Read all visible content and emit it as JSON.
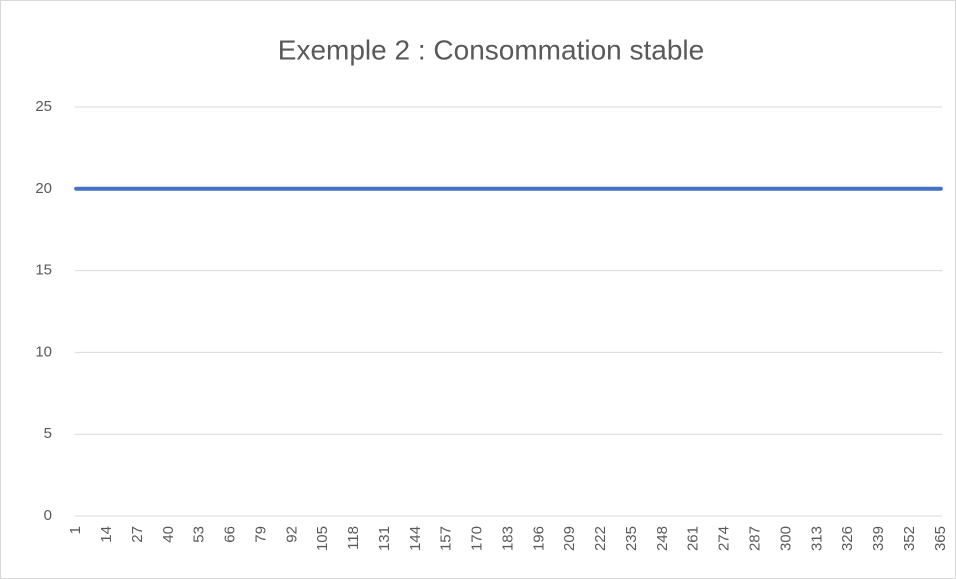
{
  "chart_data": {
    "type": "line",
    "title": "Exemple 2 : Consommation stable",
    "x": [
      1,
      2,
      3,
      4,
      5,
      6,
      7,
      8,
      9,
      10,
      11,
      12,
      13,
      14,
      15,
      16,
      17,
      18,
      19,
      20,
      21,
      22,
      23,
      24,
      25,
      26,
      27,
      28,
      29,
      30,
      31,
      32,
      33,
      34,
      35,
      36,
      37,
      38,
      39,
      40,
      41,
      42,
      43,
      44,
      45,
      46,
      47,
      48,
      49,
      50,
      51,
      52,
      53,
      54,
      55,
      56,
      57,
      58,
      59,
      60,
      61,
      62,
      63,
      64,
      65,
      66,
      67,
      68,
      69,
      70,
      71,
      72,
      73,
      74,
      75,
      76,
      77,
      78,
      79,
      80,
      81,
      82,
      83,
      84,
      85,
      86,
      87,
      88,
      89,
      90,
      91,
      92,
      93,
      94,
      95,
      96,
      97,
      98,
      99,
      100,
      101,
      102,
      103,
      104,
      105,
      106,
      107,
      108,
      109,
      110,
      111,
      112,
      113,
      114,
      115,
      116,
      117,
      118,
      119,
      120,
      121,
      122,
      123,
      124,
      125,
      126,
      127,
      128,
      129,
      130,
      131,
      132,
      133,
      134,
      135,
      136,
      137,
      138,
      139,
      140,
      141,
      142,
      143,
      144,
      145,
      146,
      147,
      148,
      149,
      150,
      151,
      152,
      153,
      154,
      155,
      156,
      157,
      158,
      159,
      160,
      161,
      162,
      163,
      164,
      165,
      166,
      167,
      168,
      169,
      170,
      171,
      172,
      173,
      174,
      175,
      176,
      177,
      178,
      179,
      180,
      181,
      182,
      183,
      184,
      185,
      186,
      187,
      188,
      189,
      190,
      191,
      192,
      193,
      194,
      195,
      196,
      197,
      198,
      199,
      200,
      201,
      202,
      203,
      204,
      205,
      206,
      207,
      208,
      209,
      210,
      211,
      212,
      213,
      214,
      215,
      216,
      217,
      218,
      219,
      220,
      221,
      222,
      223,
      224,
      225,
      226,
      227,
      228,
      229,
      230,
      231,
      232,
      233,
      234,
      235,
      236,
      237,
      238,
      239,
      240,
      241,
      242,
      243,
      244,
      245,
      246,
      247,
      248,
      249,
      250,
      251,
      252,
      253,
      254,
      255,
      256,
      257,
      258,
      259,
      260,
      261,
      262,
      263,
      264,
      265,
      266,
      267,
      268,
      269,
      270,
      271,
      272,
      273,
      274,
      275,
      276,
      277,
      278,
      279,
      280,
      281,
      282,
      283,
      284,
      285,
      286,
      287,
      288,
      289,
      290,
      291,
      292,
      293,
      294,
      295,
      296,
      297,
      298,
      299,
      300,
      301,
      302,
      303,
      304,
      305,
      306,
      307,
      308,
      309,
      310,
      311,
      312,
      313,
      314,
      315,
      316,
      317,
      318,
      319,
      320,
      321,
      322,
      323,
      324,
      325,
      326,
      327,
      328,
      329,
      330,
      331,
      332,
      333,
      334,
      335,
      336,
      337,
      338,
      339,
      340,
      341,
      342,
      343,
      344,
      345,
      346,
      347,
      348,
      349,
      350,
      351,
      352,
      353,
      354,
      355,
      356,
      357,
      358,
      359,
      360,
      361,
      362,
      363,
      364,
      365
    ],
    "series": [
      {
        "color": "#4472c4",
        "values": [
          20,
          20,
          20,
          20,
          20,
          20,
          20,
          20,
          20,
          20,
          20,
          20,
          20,
          20,
          20,
          20,
          20,
          20,
          20,
          20,
          20,
          20,
          20,
          20,
          20,
          20,
          20,
          20,
          20,
          20,
          20,
          20,
          20,
          20,
          20,
          20,
          20,
          20,
          20,
          20,
          20,
          20,
          20,
          20,
          20,
          20,
          20,
          20,
          20,
          20,
          20,
          20,
          20,
          20,
          20,
          20,
          20,
          20,
          20,
          20,
          20,
          20,
          20,
          20,
          20,
          20,
          20,
          20,
          20,
          20,
          20,
          20,
          20,
          20,
          20,
          20,
          20,
          20,
          20,
          20,
          20,
          20,
          20,
          20,
          20,
          20,
          20,
          20,
          20,
          20,
          20,
          20,
          20,
          20,
          20,
          20,
          20,
          20,
          20,
          20,
          20,
          20,
          20,
          20,
          20,
          20,
          20,
          20,
          20,
          20,
          20,
          20,
          20,
          20,
          20,
          20,
          20,
          20,
          20,
          20,
          20,
          20,
          20,
          20,
          20,
          20,
          20,
          20,
          20,
          20,
          20,
          20,
          20,
          20,
          20,
          20,
          20,
          20,
          20,
          20,
          20,
          20,
          20,
          20,
          20,
          20,
          20,
          20,
          20,
          20,
          20,
          20,
          20,
          20,
          20,
          20,
          20,
          20,
          20,
          20,
          20,
          20,
          20,
          20,
          20,
          20,
          20,
          20,
          20,
          20,
          20,
          20,
          20,
          20,
          20,
          20,
          20,
          20,
          20,
          20,
          20,
          20,
          20,
          20,
          20,
          20,
          20,
          20,
          20,
          20,
          20,
          20,
          20,
          20,
          20,
          20,
          20,
          20,
          20,
          20,
          20,
          20,
          20,
          20,
          20,
          20,
          20,
          20,
          20,
          20,
          20,
          20,
          20,
          20,
          20,
          20,
          20,
          20,
          20,
          20,
          20,
          20,
          20,
          20,
          20,
          20,
          20,
          20,
          20,
          20,
          20,
          20,
          20,
          20,
          20,
          20,
          20,
          20,
          20,
          20,
          20,
          20,
          20,
          20,
          20,
          20,
          20,
          20,
          20,
          20,
          20,
          20,
          20,
          20,
          20,
          20,
          20,
          20,
          20,
          20,
          20,
          20,
          20,
          20,
          20,
          20,
          20,
          20,
          20,
          20,
          20,
          20,
          20,
          20,
          20,
          20,
          20,
          20,
          20,
          20,
          20,
          20,
          20,
          20,
          20,
          20,
          20,
          20,
          20,
          20,
          20,
          20,
          20,
          20,
          20,
          20,
          20,
          20,
          20,
          20,
          20,
          20,
          20,
          20,
          20,
          20,
          20,
          20,
          20,
          20,
          20,
          20,
          20,
          20,
          20,
          20,
          20,
          20,
          20,
          20,
          20,
          20,
          20,
          20,
          20,
          20,
          20,
          20,
          20,
          20,
          20,
          20,
          20,
          20,
          20,
          20,
          20,
          20,
          20,
          20,
          20,
          20,
          20,
          20,
          20,
          20,
          20,
          20,
          20,
          20,
          20,
          20,
          20,
          20,
          20,
          20,
          20,
          20,
          20,
          20,
          20,
          20,
          20,
          20,
          20
        ]
      }
    ],
    "xlim": [
      0.5,
      365.5
    ],
    "xticks": [
      1,
      14,
      27,
      40,
      53,
      66,
      79,
      92,
      105,
      118,
      131,
      144,
      157,
      170,
      183,
      196,
      209,
      222,
      235,
      248,
      261,
      274,
      287,
      300,
      313,
      326,
      339,
      352,
      365
    ],
    "ylim": [
      0,
      25
    ],
    "yticks": [
      0,
      5,
      10,
      15,
      20,
      25
    ],
    "grid": true
  }
}
